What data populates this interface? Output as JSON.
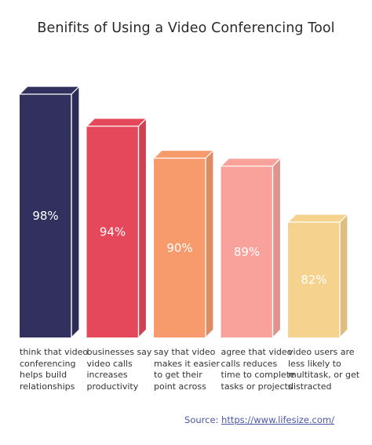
{
  "title": "Benifits of Using a Video Conferencing Tool",
  "source_prefix": "Source: ",
  "source_link": "https://www.lifesize.com/",
  "chart_data": {
    "type": "bar",
    "title": "Benifits of Using a Video Conferencing Tool",
    "categories": [
      "think that video conferencing helps build relationships",
      "businesses say video calls increases productivity",
      "say that video makes it easier to get their point across",
      "agree that video calls reduces time to complete tasks or projects",
      "video users are less likely to multitask, or get distracted"
    ],
    "values": [
      98,
      94,
      90,
      89,
      82
    ],
    "value_labels": [
      "98%",
      "94%",
      "90%",
      "89%",
      "82%"
    ],
    "ylim": [
      0,
      100
    ],
    "grid": false,
    "colors": [
      "#31305f",
      "#e4485a",
      "#f79a6c",
      "#f9a29c",
      "#f5d38e"
    ]
  },
  "label_lines": [
    [
      "think that video",
      "conferencing",
      "helps build",
      "relationships"
    ],
    [
      "businesses say",
      "video calls",
      "increases",
      "productivity"
    ],
    [
      "say that video",
      "makes it easier",
      "to get their",
      "point across"
    ],
    [
      "agree that video",
      "calls reduces",
      "time to complete",
      "tasks or projects"
    ],
    [
      "video users are",
      "less likely to",
      "multitask, or get",
      "distracted"
    ]
  ]
}
